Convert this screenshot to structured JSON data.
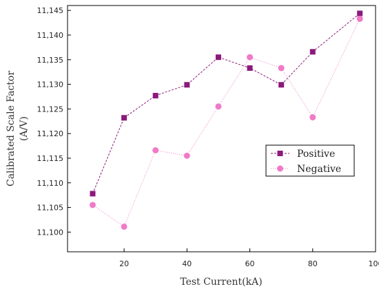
{
  "chart_data": {
    "type": "line",
    "title": "",
    "xlabel": "Test Current(kA)",
    "ylabel_lines": [
      "Calibrated Scale Factor",
      "(A/V)"
    ],
    "xlim": [
      2,
      100
    ],
    "ylim": [
      11096,
      11146
    ],
    "xticks": [
      20,
      40,
      60,
      80,
      100
    ],
    "yticks": [
      11100,
      11105,
      11110,
      11115,
      11120,
      11125,
      11130,
      11135,
      11140,
      11145
    ],
    "ytick_labels": [
      "11,100",
      "11,105",
      "11,110",
      "11,115",
      "11,120",
      "11,125",
      "11,130",
      "11,135",
      "11,140",
      "11,145"
    ],
    "grid": false,
    "legend_position": "center-right",
    "series": [
      {
        "name": "Positive",
        "marker": "square",
        "line_style": "dashed",
        "color": "#8B1A7A",
        "x": [
          10,
          20,
          30,
          40,
          50,
          60,
          70,
          80,
          95
        ],
        "y": [
          11107.8,
          11123.2,
          11127.7,
          11129.9,
          11135.5,
          11133.3,
          11129.9,
          11136.6,
          11144.4
        ]
      },
      {
        "name": "Negative",
        "marker": "circle",
        "line_style": "dotted",
        "color": "#F07AC8",
        "x": [
          10,
          20,
          30,
          40,
          50,
          60,
          70,
          80,
          95
        ],
        "y": [
          11105.5,
          11101.1,
          11116.6,
          11115.5,
          11125.5,
          11135.5,
          11133.3,
          11123.3,
          11143.3
        ]
      }
    ]
  }
}
